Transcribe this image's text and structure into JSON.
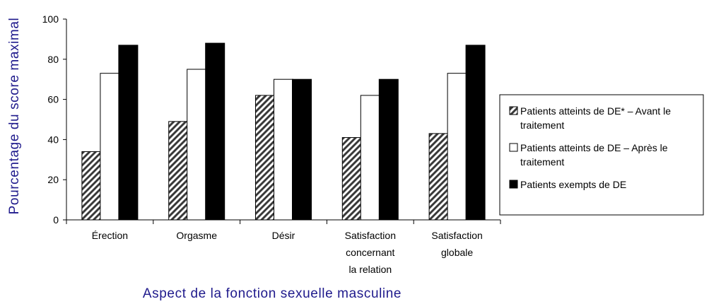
{
  "chart_data": {
    "type": "bar",
    "categories": [
      [
        "Érection"
      ],
      [
        "Orgasme"
      ],
      [
        "Désir"
      ],
      [
        "Satisfaction",
        "concernant",
        "la relation"
      ],
      [
        "Satisfaction",
        "globale"
      ]
    ],
    "series": [
      {
        "name": [
          "Patients atteints de DE* – Avant le",
          "traitement"
        ],
        "values": [
          34,
          49,
          62,
          41,
          43
        ],
        "fill": "hatched"
      },
      {
        "name": [
          "Patients atteints de DE – Après le",
          "traitement"
        ],
        "values": [
          73,
          75,
          70,
          62,
          73
        ],
        "fill": "#ffffff"
      },
      {
        "name": [
          "Patients exempts de DE"
        ],
        "values": [
          87,
          88,
          70,
          70,
          87
        ],
        "fill": "#000000"
      }
    ],
    "xlabel": "Aspect de la fonction sexuelle masculine",
    "ylabel": "Pourcentage du score maximal",
    "ylim": [
      0,
      100
    ],
    "yticks": [
      0,
      20,
      40,
      60,
      80,
      100
    ],
    "grid": false,
    "legend_position": "right"
  },
  "colors": {
    "axis_title": "#1f1a8c",
    "bar_outline": "#000000",
    "hatch_dark": "#000000",
    "hatch_light": "#ffffff"
  }
}
